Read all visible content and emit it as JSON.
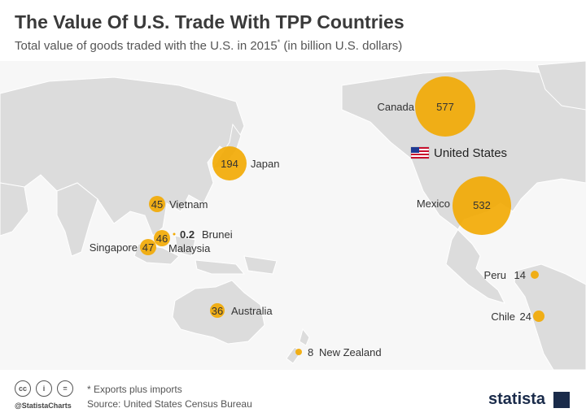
{
  "header": {
    "title": "The Value Of U.S. Trade With TPP Countries",
    "subtitle": "Total value of goods traded with the U.S. in 2015",
    "subtitle_marker": "*",
    "subtitle_unit": "(in billion U.S. dollars)"
  },
  "colors": {
    "bubble": "#f2a900",
    "land": "#dcdcdc",
    "ocean": "#f7f7f7",
    "brand": "#1a2b4a"
  },
  "map": {
    "us_label": "United States",
    "countries": [
      {
        "name": "Canada",
        "value": "577"
      },
      {
        "name": "Mexico",
        "value": "532"
      },
      {
        "name": "Japan",
        "value": "194"
      },
      {
        "name": "Vietnam",
        "value": "45"
      },
      {
        "name": "Brunei",
        "value": "0.2"
      },
      {
        "name": "Malaysia",
        "value": "46"
      },
      {
        "name": "Singapore",
        "value": "47"
      },
      {
        "name": "Australia",
        "value": "36"
      },
      {
        "name": "New Zealand",
        "value": "8"
      },
      {
        "name": "Peru",
        "value": "14"
      },
      {
        "name": "Chile",
        "value": "24"
      }
    ]
  },
  "footer": {
    "license_icons": [
      "cc-icon",
      "attribution-icon",
      "no-derivatives-icon"
    ],
    "license_glyphs": [
      "cc",
      "i",
      "="
    ],
    "handle": "@StatistaCharts",
    "note": "* Exports plus imports",
    "source": "Source: United States Census Bureau",
    "logo": "statista"
  }
}
